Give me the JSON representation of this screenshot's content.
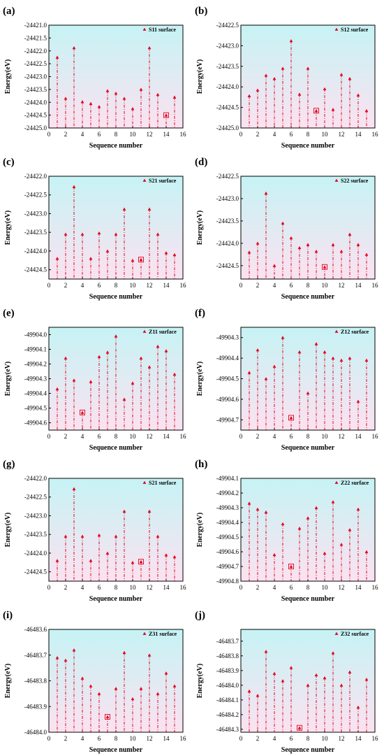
{
  "colors": {
    "marker": "#e3001b",
    "stem": "#e3001b",
    "bg_top": "#c6f3f5",
    "bg_bottom": "#fbe2f0",
    "axis": "#000000"
  },
  "chart_data": [
    {
      "type": "scatter",
      "panel_label": "(a)",
      "legend": "S11 surface",
      "xlabel": "Sequence number",
      "ylabel": "Energy(eV)",
      "xlim": [
        0,
        16
      ],
      "xticks": [
        "0",
        "2",
        "4",
        "6",
        "8",
        "10",
        "12",
        "14",
        "16"
      ],
      "ylim": [
        -24425.0,
        -24421.0
      ],
      "yticks": [
        "-24421.0",
        "-24421.5",
        "-24422.0",
        "-24422.5",
        "-24423.0",
        "-24423.5",
        "-24424.0",
        "-24424.5",
        "-24425.0"
      ],
      "x": [
        1,
        2,
        3,
        4,
        5,
        6,
        7,
        8,
        9,
        10,
        11,
        12,
        13,
        14,
        15
      ],
      "y": [
        -24422.25,
        -24423.85,
        -24421.88,
        -24423.98,
        -24424.05,
        -24424.17,
        -24423.55,
        -24423.65,
        -24423.85,
        -24424.25,
        -24423.5,
        -24421.88,
        -24423.7,
        -24424.5,
        -24423.8
      ],
      "highlight_index": 13
    },
    {
      "type": "scatter",
      "panel_label": "(b)",
      "legend": "S12 surface",
      "xlabel": "Sequence number",
      "ylabel": "Energy(eV)",
      "xlim": [
        0,
        16
      ],
      "xticks": [
        "0",
        "2",
        "4",
        "6",
        "8",
        "10",
        "12",
        "14",
        "16"
      ],
      "ylim": [
        -24425.0,
        -24422.5
      ],
      "yticks": [
        "-24422.5",
        "-24423.0",
        "-24423.5",
        "-24424.0",
        "-24424.5",
        "-24425.0"
      ],
      "x": [
        1,
        2,
        3,
        4,
        5,
        6,
        7,
        8,
        9,
        10,
        11,
        12,
        13,
        14,
        15
      ],
      "y": [
        -24424.22,
        -24424.08,
        -24423.72,
        -24423.8,
        -24423.55,
        -24422.88,
        -24424.18,
        -24423.55,
        -24424.58,
        -24424.05,
        -24424.55,
        -24423.7,
        -24423.8,
        -24424.2,
        -24424.58
      ],
      "highlight_index": 8
    },
    {
      "type": "scatter",
      "panel_label": "(c)",
      "legend": "S21 surface",
      "xlabel": "Sequence number",
      "ylabel": "Energy(eV)",
      "xlim": [
        0,
        16
      ],
      "xticks": [
        "0",
        "2",
        "4",
        "6",
        "8",
        "10",
        "12",
        "14",
        "16"
      ],
      "ylim": [
        -24424.75,
        -24422.0
      ],
      "yticks": [
        "-24422.0",
        "-24422.5",
        "-24423.0",
        "-24423.5",
        "-24424.0",
        "-24424.5"
      ],
      "x": [
        1,
        2,
        3,
        4,
        5,
        6,
        7,
        8,
        9,
        10,
        11,
        12,
        13,
        14,
        15
      ],
      "y": [
        -24424.2,
        -24423.55,
        -24422.28,
        -24423.55,
        -24424.2,
        -24423.52,
        -24424.0,
        -24423.55,
        -24422.88,
        -24424.25,
        -24424.23,
        -24422.88,
        -24423.55,
        -24424.05,
        -24424.1
      ],
      "highlight_index": 10
    },
    {
      "type": "scatter",
      "panel_label": "(d)",
      "legend": "S22 surface",
      "xlabel": "Sequence number",
      "ylabel": "Energy(eV)",
      "xlim": [
        0,
        16
      ],
      "xticks": [
        "0",
        "2",
        "4",
        "6",
        "8",
        "10",
        "12",
        "14",
        "16"
      ],
      "ylim": [
        -24424.8,
        -24422.5
      ],
      "yticks": [
        "-24422.5",
        "-24423.0",
        "-24423.5",
        "-24424.0",
        "-24424.5"
      ],
      "x": [
        1,
        2,
        3,
        4,
        5,
        6,
        7,
        8,
        9,
        10,
        11,
        12,
        13,
        14,
        15
      ],
      "y": [
        -24424.2,
        -24424.0,
        -24422.88,
        -24424.5,
        -24423.55,
        -24423.88,
        -24424.1,
        -24424.03,
        -24424.18,
        -24424.53,
        -24424.03,
        -24424.18,
        -24423.8,
        -24424.03,
        -24424.25
      ],
      "highlight_index": 9
    },
    {
      "type": "scatter",
      "panel_label": "(e)",
      "legend": "Z11 surface",
      "xlabel": "Sequence number",
      "ylabel": "Energy(eV)",
      "xlim": [
        0,
        16
      ],
      "xticks": [
        "0",
        "2",
        "4",
        "6",
        "8",
        "10",
        "12",
        "14",
        "16"
      ],
      "ylim": [
        -49904.65,
        -49903.95
      ],
      "yticks": [
        "-49904.0",
        "-49904.1",
        "-49904.2",
        "-49904.3",
        "-49904.4",
        "-49904.5",
        "-49904.6"
      ],
      "x": [
        1,
        2,
        3,
        4,
        5,
        6,
        7,
        8,
        9,
        10,
        11,
        12,
        13,
        14,
        15
      ],
      "y": [
        -49904.37,
        -49904.16,
        -49904.31,
        -49904.53,
        -49904.32,
        -49904.15,
        -49904.12,
        -49904.01,
        -49904.44,
        -49904.33,
        -49904.16,
        -49904.22,
        -49904.08,
        -49904.11,
        -49904.27
      ],
      "highlight_index": 3
    },
    {
      "type": "scatter",
      "panel_label": "(f)",
      "legend": "Z12 surface",
      "xlabel": "Sequence number",
      "ylabel": "Energy(eV)",
      "xlim": [
        0,
        16
      ],
      "xticks": [
        "0",
        "2",
        "4",
        "6",
        "8",
        "10",
        "12",
        "14",
        "16"
      ],
      "ylim": [
        -49904.75,
        -49904.25
      ],
      "yticks": [
        "-49904.3",
        "-49904.4",
        "-49904.5",
        "-49904.6",
        "-49904.7"
      ],
      "x": [
        1,
        2,
        3,
        4,
        5,
        6,
        7,
        8,
        9,
        10,
        11,
        12,
        13,
        14,
        15
      ],
      "y": [
        -49904.47,
        -49904.36,
        -49904.5,
        -49904.44,
        -49904.3,
        -49904.69,
        -49904.37,
        -49904.57,
        -49904.33,
        -49904.37,
        -49904.4,
        -49904.41,
        -49904.4,
        -49904.61,
        -49904.41
      ],
      "highlight_index": 5
    },
    {
      "type": "scatter",
      "panel_label": "(g)",
      "legend": "S21 surface",
      "xlabel": "Sequence number",
      "ylabel": "Energy(eV)",
      "xlim": [
        0,
        16
      ],
      "xticks": [
        "0",
        "2",
        "4",
        "6",
        "8",
        "10",
        "12",
        "14",
        "16"
      ],
      "ylim": [
        -24424.75,
        -24422.0
      ],
      "yticks": [
        "-24422.0",
        "-24422.5",
        "-24423.0",
        "-24423.5",
        "-24424.0",
        "-24424.5"
      ],
      "x": [
        1,
        2,
        3,
        4,
        5,
        6,
        7,
        8,
        9,
        10,
        11,
        12,
        13,
        14,
        15
      ],
      "y": [
        -24424.2,
        -24423.55,
        -24422.28,
        -24423.55,
        -24424.2,
        -24423.52,
        -24424.0,
        -24423.55,
        -24422.88,
        -24424.25,
        -24424.23,
        -24422.88,
        -24423.55,
        -24424.05,
        -24424.1
      ],
      "highlight_index": 10
    },
    {
      "type": "scatter",
      "panel_label": "(h)",
      "legend": "Z22 surface",
      "xlabel": "Sequence number",
      "ylabel": "Energy(eV)",
      "xlim": [
        0,
        16
      ],
      "xticks": [
        "0",
        "2",
        "4",
        "6",
        "8",
        "10",
        "12",
        "14",
        "16"
      ],
      "ylim": [
        -49904.8,
        -49904.1
      ],
      "yticks": [
        "-49904.1",
        "-49904.2",
        "-49904.3",
        "-49904.4",
        "-49904.5",
        "-49904.6",
        "-49904.7",
        "-49904.8"
      ],
      "x": [
        1,
        2,
        3,
        4,
        5,
        6,
        7,
        8,
        9,
        10,
        11,
        12,
        13,
        14,
        15
      ],
      "y": [
        -49904.27,
        -49904.31,
        -49904.33,
        -49904.62,
        -49904.41,
        -49904.7,
        -49904.44,
        -49904.37,
        -49904.3,
        -49904.61,
        -49904.26,
        -49904.55,
        -49904.45,
        -49904.31,
        -49904.6
      ],
      "highlight_index": 5
    },
    {
      "type": "scatter",
      "panel_label": "(i)",
      "legend": "Z31 surface",
      "xlabel": "Sequence number",
      "ylabel": "Energy(eV)",
      "xlim": [
        0,
        16
      ],
      "xticks": [
        "0",
        "2",
        "4",
        "6",
        "8",
        "10",
        "12",
        "14",
        "16"
      ],
      "ylim": [
        -46484.0,
        -46483.6
      ],
      "yticks": [
        "-46483.6",
        "-46483.7",
        "-46483.8",
        "-46483.9",
        "-46484.0"
      ],
      "x": [
        1,
        2,
        3,
        4,
        5,
        6,
        7,
        8,
        9,
        10,
        11,
        12,
        13,
        14,
        15
      ],
      "y": [
        -46483.71,
        -46483.72,
        -46483.68,
        -46483.79,
        -46483.82,
        -46483.85,
        -46483.94,
        -46483.83,
        -46483.69,
        -46483.87,
        -46483.83,
        -46483.7,
        -46483.85,
        -46483.77,
        -46483.82
      ],
      "highlight_index": 6
    },
    {
      "type": "scatter",
      "panel_label": "(j)",
      "legend": "Z32 surface",
      "xlabel": "Sequence number",
      "ylabel": "Energy(eV)",
      "xlim": [
        0,
        16
      ],
      "xticks": [
        "0",
        "2",
        "4",
        "6",
        "8",
        "10",
        "12",
        "14",
        "16"
      ],
      "ylim": [
        -46484.32,
        -46483.62
      ],
      "yticks": [
        "-46483.7",
        "-46483.8",
        "-46483.9",
        "-46484.0",
        "-46484.1",
        "-46484.2",
        "-46484.3"
      ],
      "x": [
        1,
        2,
        3,
        4,
        5,
        6,
        7,
        8,
        9,
        10,
        11,
        12,
        13,
        14,
        15
      ],
      "y": [
        -46484.04,
        -46484.07,
        -46483.77,
        -46483.92,
        -46483.97,
        -46483.88,
        -46484.29,
        -46484.0,
        -46483.93,
        -46483.95,
        -46483.78,
        -46484.0,
        -46483.91,
        -46484.15,
        -46483.96
      ],
      "highlight_index": 6
    }
  ]
}
